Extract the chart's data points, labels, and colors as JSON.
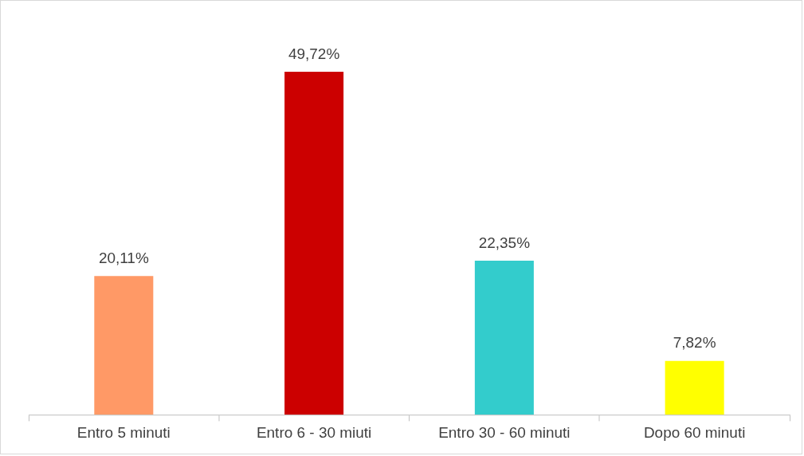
{
  "chart_data": {
    "type": "bar",
    "categories": [
      "Entro 5 minuti",
      "Entro 6 - 30 miuti",
      "Entro 30 - 60 minuti",
      "Dopo 60 minuti"
    ],
    "values": [
      20.11,
      49.72,
      22.35,
      7.82
    ],
    "colors": [
      "#ff9966",
      "#cc0000",
      "#33cccc",
      "#ffff00"
    ],
    "value_labels": [
      "20,11%",
      "49,72%",
      "22,35%",
      "7,82%"
    ],
    "ylim": [
      0,
      60
    ]
  }
}
